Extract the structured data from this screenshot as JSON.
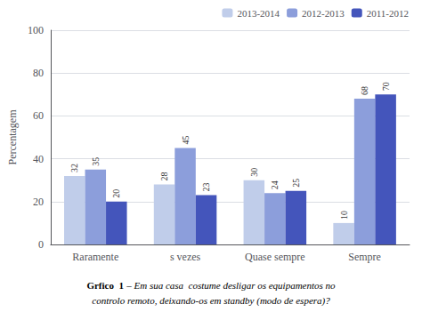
{
  "chart_data": {
    "type": "bar",
    "ylabel": "Percentagem",
    "categories": [
      "Raramente",
      "s vezes",
      "Quase sempre",
      "Sempre"
    ],
    "series": [
      {
        "name": "2013-2014",
        "color": "#c0cdea",
        "values": [
          32,
          28,
          30,
          10
        ]
      },
      {
        "name": "2012-2013",
        "color": "#8c9edb",
        "values": [
          35,
          45,
          24,
          68
        ]
      },
      {
        "name": "2011-2012",
        "color": "#4455bb",
        "values": [
          20,
          23,
          25,
          70
        ]
      }
    ],
    "ylim": [
      0,
      100
    ],
    "yticks": [
      0,
      20,
      40,
      60,
      80,
      100
    ],
    "grid": true,
    "legend": "upper right",
    "data_labels": true,
    "annotations": [
      "Grfico  1",
      "– Em sua casa  costume desligar os equipamentos no",
      "controlo remoto, deixando-os em standby (modo de espera)?"
    ]
  }
}
